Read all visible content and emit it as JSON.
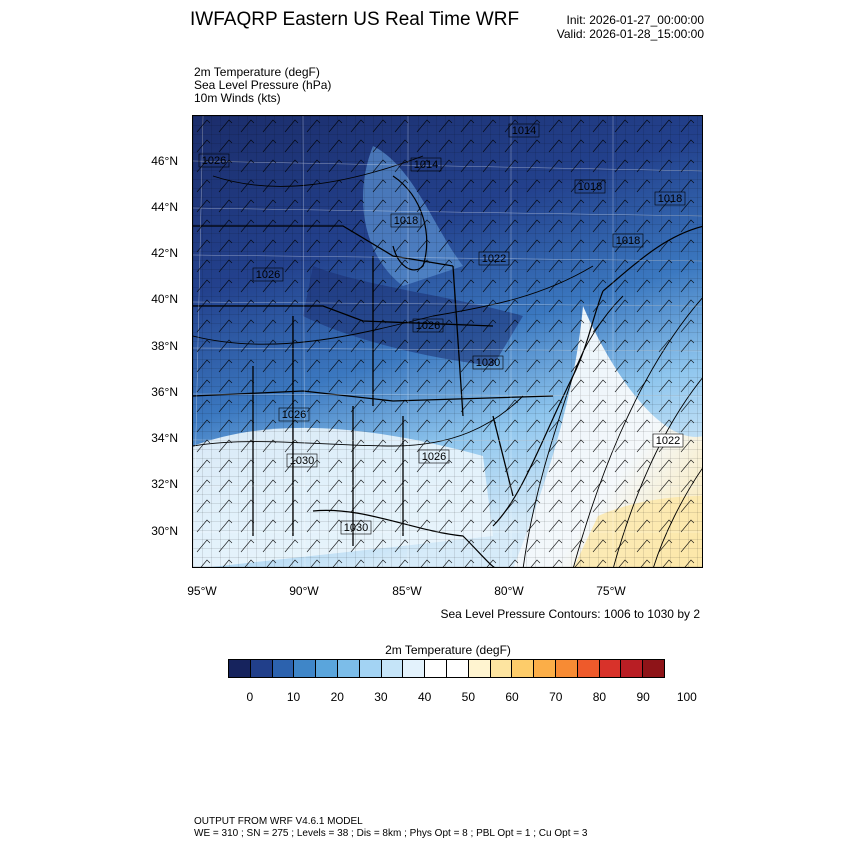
{
  "header": {
    "title": "IWFAQRP Eastern US Real Time WRF",
    "init": "Init: 2026-01-27_00:00:00",
    "valid": "Valid: 2026-01-28_15:00:00"
  },
  "fields": [
    "2m Temperature   (degF)",
    "Sea Level Pressure   (hPa)",
    "10m Winds   (kts)"
  ],
  "map": {
    "lat_labels": [
      "46°N",
      "44°N",
      "42°N",
      "40°N",
      "38°N",
      "36°N",
      "34°N",
      "32°N",
      "30°N"
    ],
    "lon_labels": [
      "95°W",
      "90°W",
      "85°W",
      "80°W",
      "75°W"
    ],
    "isobar_labels": [
      "1026",
      "1014",
      "1014",
      "1018",
      "1018",
      "1022",
      "1018",
      "1018",
      "1026",
      "1026",
      "1030",
      "1026",
      "1030",
      "1030",
      "1026",
      "1022"
    ],
    "contour_note": "Sea Level Pressure Contours: 1006 to 1030 by 2",
    "colors": {
      "cold_dark": "#1b2d6b",
      "cold": "#3b78c0",
      "mid": "#cfe6f8",
      "warm": "#fde7a8",
      "ocean": "#e8f3fb"
    }
  },
  "colorbar": {
    "title": "2m Temperature  (degF)",
    "colors": [
      "#16235d",
      "#213f8a",
      "#2c62ae",
      "#3f86c8",
      "#5aa5dc",
      "#7cbde9",
      "#a3d3f3",
      "#c5e4f8",
      "#e3f2fc",
      "#ffffff",
      "#ffffff",
      "#fff4d0",
      "#fde4a0",
      "#fdcc6a",
      "#fbae48",
      "#f78b34",
      "#ee5a2b",
      "#d8322a",
      "#b91e24",
      "#8e1418"
    ],
    "ticks": [
      "0",
      "10",
      "20",
      "30",
      "40",
      "50",
      "60",
      "70",
      "80",
      "90",
      "100"
    ]
  },
  "footer": {
    "line1": "OUTPUT FROM WRF V4.6.1 MODEL",
    "line2": "WE = 310 ; SN = 275 ; Levels = 38 ; Dis = 8km ; Phys Opt = 8 ; PBL Opt = 1 ; Cu Opt = 3"
  }
}
